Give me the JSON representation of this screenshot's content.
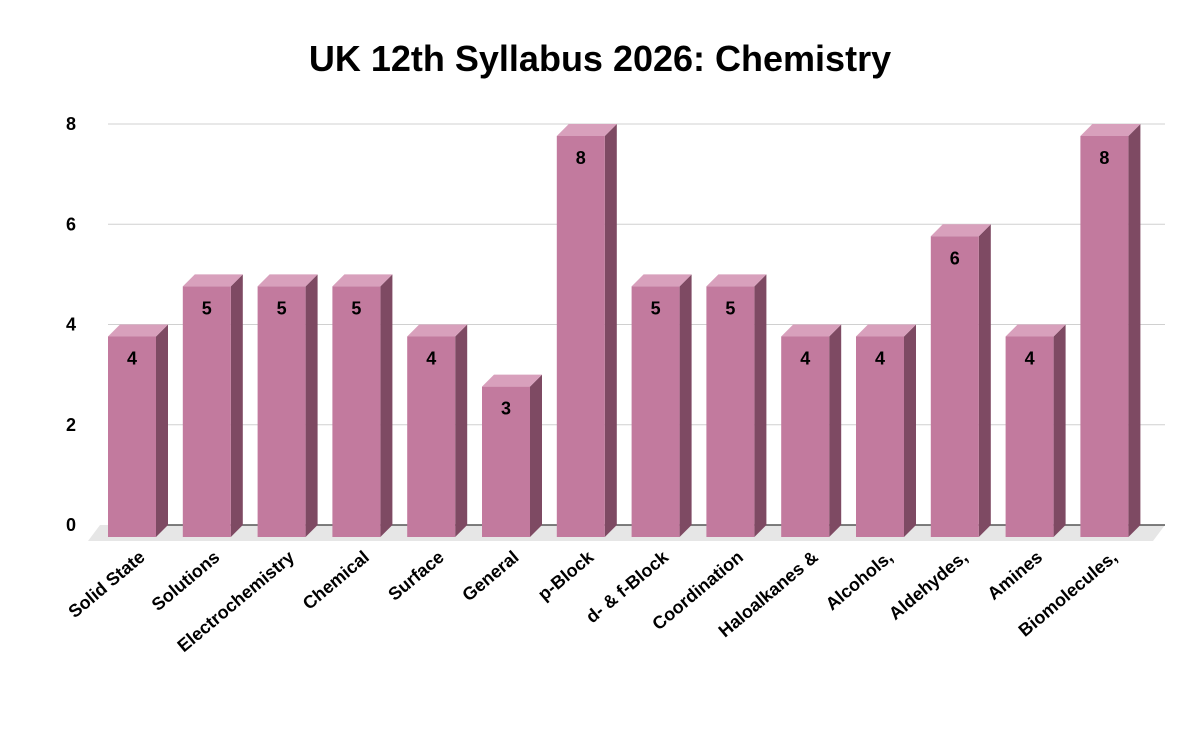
{
  "chart_data": {
    "type": "bar",
    "title": "UK 12th Syllabus 2026: Chemistry",
    "xlabel": "",
    "ylabel": "",
    "categories": [
      "Solid State",
      "Solutions",
      "Electrochemistry",
      "Chemical",
      "Surface",
      "General",
      "p-Block",
      "d- & f-Block",
      "Coordination",
      "Haloalkanes &",
      "Alcohols,",
      "Aldehydes,",
      "Amines",
      "Biomolecules,"
    ],
    "values": [
      4,
      5,
      5,
      5,
      4,
      3,
      8,
      5,
      5,
      4,
      4,
      6,
      4,
      8
    ],
    "data_labels": [
      "4",
      "5",
      "5",
      "5",
      "4",
      "3",
      "8",
      "5",
      "5",
      "4",
      "4",
      "6",
      "4",
      "8"
    ],
    "yticks": [
      0,
      2,
      4,
      6,
      8
    ],
    "ylim": [
      0,
      8
    ],
    "grid": true,
    "legend": "none",
    "colors": {
      "bar_front": "#C27A9E",
      "bar_side": "#7E4A63",
      "bar_top": "#D8A0BC",
      "grid": "#D0D0D0",
      "floor": "#E6E6E6",
      "axis": "#000000"
    }
  }
}
